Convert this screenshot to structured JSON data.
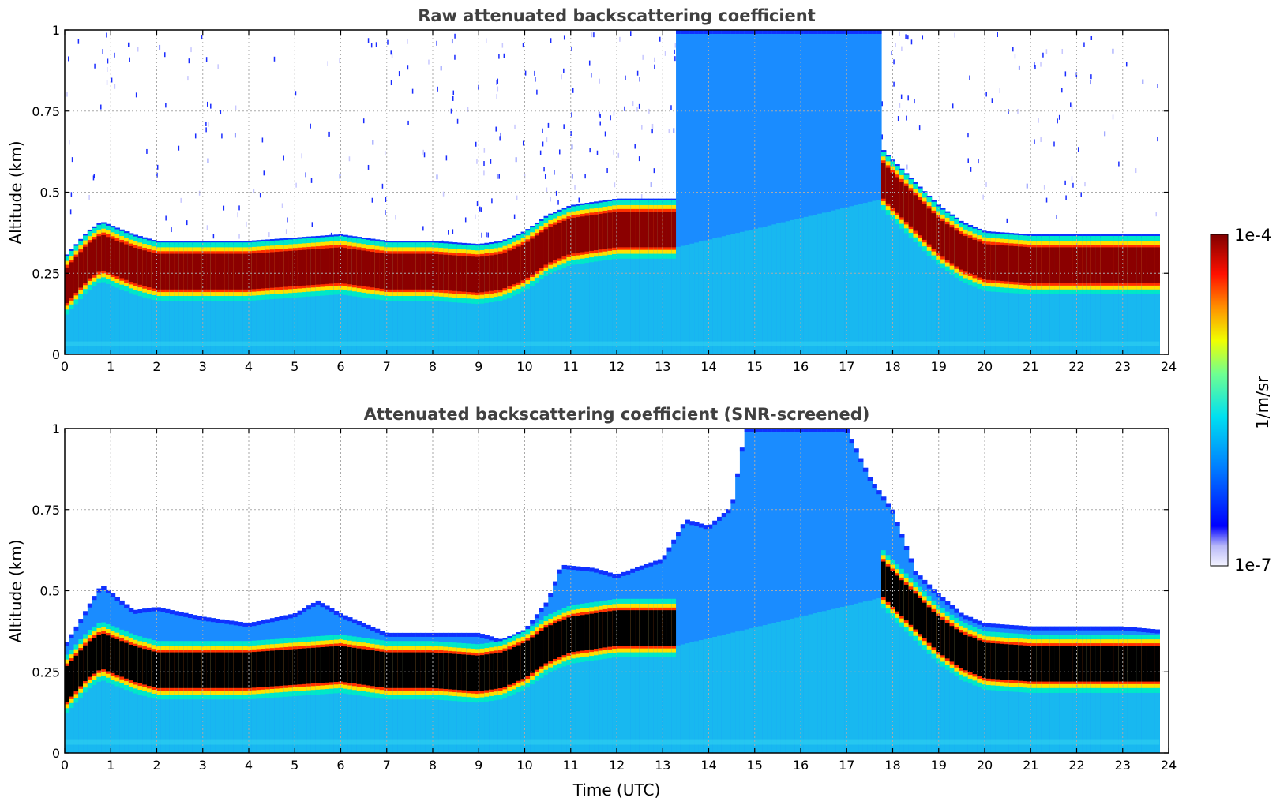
{
  "chart_data": [
    {
      "type": "heatmap",
      "title": "Raw attenuated backscattering coefficient",
      "xlabel": "",
      "ylabel": "Altitude (km)",
      "xlim": [
        0,
        24
      ],
      "ylim": [
        0,
        1
      ],
      "xticks": [
        "0",
        "1",
        "2",
        "3",
        "4",
        "5",
        "6",
        "7",
        "8",
        "9",
        "10",
        "11",
        "12",
        "13",
        "14",
        "15",
        "16",
        "17",
        "18",
        "19",
        "20",
        "21",
        "22",
        "23",
        "24"
      ],
      "yticks": [
        "0",
        "0.25",
        "0.5",
        "0.75",
        "1"
      ],
      "grid": true,
      "data_end_hour": 23.8,
      "layer_peak_altitude_km": {
        "x": [
          0,
          0.5,
          0.8,
          1.5,
          2,
          3,
          4,
          5,
          6,
          7,
          8,
          9,
          9.5,
          10,
          10.5,
          11,
          12,
          13,
          13.3,
          17.8,
          18,
          18.5,
          19,
          19.5,
          20,
          21,
          22,
          23,
          23.8
        ],
        "y": [
          0.2,
          0.28,
          0.31,
          0.27,
          0.25,
          0.25,
          0.25,
          0.26,
          0.27,
          0.25,
          0.25,
          0.24,
          0.25,
          0.28,
          0.33,
          0.36,
          0.38,
          0.38,
          0.38,
          0.53,
          0.5,
          0.43,
          0.36,
          0.31,
          0.28,
          0.27,
          0.27,
          0.27,
          0.27
        ]
      },
      "notes_visible": "saturated red layer with noisy blue speckle aloft"
    },
    {
      "type": "heatmap",
      "title": "Attenuated backscattering coefficient (SNR-screened)",
      "xlabel": "Time (UTC)",
      "ylabel": "Altitude (km)",
      "xlim": [
        0,
        24
      ],
      "ylim": [
        0,
        1
      ],
      "xticks": [
        "0",
        "1",
        "2",
        "3",
        "4",
        "5",
        "6",
        "7",
        "8",
        "9",
        "10",
        "11",
        "12",
        "13",
        "14",
        "15",
        "16",
        "17",
        "18",
        "19",
        "20",
        "21",
        "22",
        "23",
        "24"
      ],
      "yticks": [
        "0",
        "0.25",
        "0.5",
        "0.75",
        "1"
      ],
      "grid": true,
      "data_end_hour": 23.8,
      "screen_top_altitude_km": {
        "x": [
          0,
          0.5,
          0.8,
          1.5,
          2,
          3,
          4,
          5,
          5.5,
          6,
          7,
          8,
          9,
          9.5,
          10,
          10.5,
          10.8,
          11.5,
          12,
          13,
          13.5,
          14,
          14.5,
          14.8,
          15,
          16,
          17,
          17.5,
          18,
          18.5,
          19,
          19.5,
          20,
          21,
          22,
          23,
          23.8
        ],
        "y": [
          0.33,
          0.45,
          0.52,
          0.44,
          0.45,
          0.42,
          0.4,
          0.43,
          0.47,
          0.43,
          0.37,
          0.37,
          0.37,
          0.35,
          0.38,
          0.47,
          0.58,
          0.57,
          0.55,
          0.6,
          0.72,
          0.7,
          0.76,
          1.0,
          1.0,
          1.0,
          1.0,
          0.85,
          0.75,
          0.56,
          0.49,
          0.43,
          0.4,
          0.39,
          0.39,
          0.39,
          0.38
        ]
      }
    }
  ],
  "colorbar": {
    "max_label": "1e-4",
    "min_label": "1e-7",
    "unit_label": "1/m/sr",
    "colormap": "jet"
  }
}
